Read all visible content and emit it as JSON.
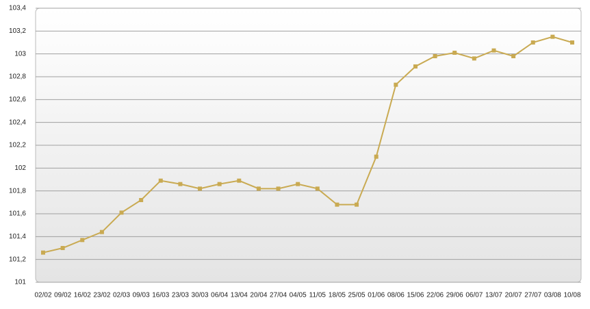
{
  "chart_data": {
    "type": "line",
    "categories": [
      "02/02",
      "09/02",
      "16/02",
      "23/02",
      "02/03",
      "09/03",
      "16/03",
      "23/03",
      "30/03",
      "06/04",
      "13/04",
      "20/04",
      "27/04",
      "04/05",
      "11/05",
      "18/05",
      "25/05",
      "01/06",
      "08/06",
      "15/06",
      "22/06",
      "29/06",
      "06/07",
      "13/07",
      "20/07",
      "27/07",
      "03/08",
      "10/08"
    ],
    "series": [
      {
        "color": "#c9aa52",
        "values": [
          101.26,
          101.3,
          101.37,
          101.44,
          101.61,
          101.72,
          101.89,
          101.86,
          101.82,
          101.86,
          101.89,
          101.82,
          101.82,
          101.86,
          101.82,
          101.68,
          101.68,
          102.1,
          102.73,
          102.89,
          102.98,
          103.01,
          102.96,
          103.03,
          102.98,
          103.1,
          103.15,
          103.1
        ]
      }
    ],
    "ylim": [
      101,
      103.4
    ],
    "yticks": [
      101,
      {
        "value": 101.2,
        "label": "101,2"
      },
      {
        "value": 101.4,
        "label": "101,4"
      },
      {
        "value": 101.6,
        "label": "101,6"
      },
      {
        "value": 101.8,
        "label": "101,8"
      },
      102,
      {
        "value": 102.2,
        "label": "102,2"
      },
      {
        "value": 102.4,
        "label": "102,4"
      },
      {
        "value": 102.6,
        "label": "102,6"
      },
      {
        "value": 102.8,
        "label": "102,8"
      },
      103,
      {
        "value": 103.2,
        "label": "103,2"
      },
      {
        "value": 103.4,
        "label": "103,4"
      }
    ],
    "grid": true
  }
}
